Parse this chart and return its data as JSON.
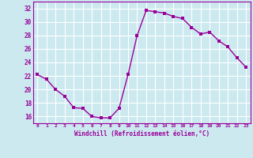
{
  "x": [
    0,
    1,
    2,
    3,
    4,
    5,
    6,
    7,
    8,
    9,
    10,
    11,
    12,
    13,
    14,
    15,
    16,
    17,
    18,
    19,
    20,
    21,
    22,
    23
  ],
  "y": [
    22.2,
    21.5,
    20.0,
    19.0,
    17.3,
    17.2,
    16.0,
    15.8,
    15.8,
    17.2,
    22.2,
    28.0,
    31.7,
    31.5,
    31.3,
    30.8,
    30.5,
    29.2,
    28.2,
    28.5,
    27.2,
    26.3,
    24.7,
    23.3
  ],
  "line_color": "#990099",
  "marker": "s",
  "marker_size": 2.5,
  "bg_color": "#cce9f0",
  "grid_color": "#ffffff",
  "xlabel": "Windchill (Refroidissement éolien,°C)",
  "xlabel_color": "#990099",
  "tick_color": "#990099",
  "spine_color": "#990099",
  "ylim": [
    15.0,
    33.0
  ],
  "xlim": [
    -0.5,
    23.5
  ],
  "yticks": [
    16,
    18,
    20,
    22,
    24,
    26,
    28,
    30,
    32
  ],
  "xticks": [
    0,
    1,
    2,
    3,
    4,
    5,
    6,
    7,
    8,
    9,
    10,
    11,
    12,
    13,
    14,
    15,
    16,
    17,
    18,
    19,
    20,
    21,
    22,
    23
  ]
}
